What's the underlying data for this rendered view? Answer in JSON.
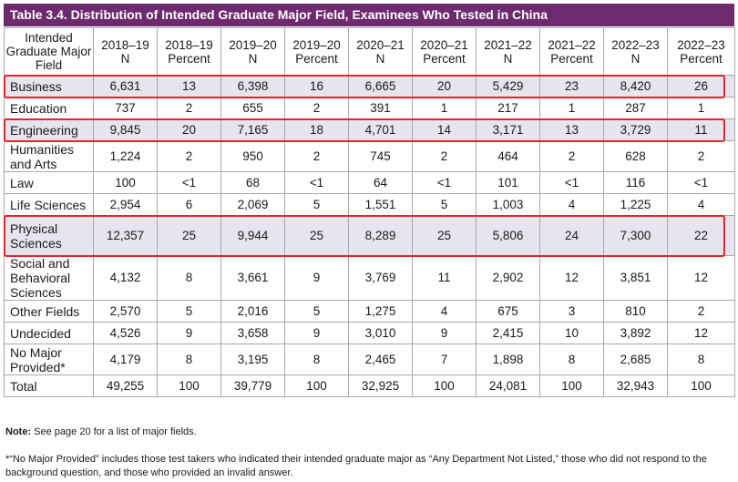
{
  "title": "Table 3.4. Distribution of Intended Graduate Major Field, Examinees Who Tested in China",
  "header": {
    "field": "Intended Graduate Major Field",
    "columns": [
      {
        "year": "2018–19",
        "kind": "N"
      },
      {
        "year": "2018–19",
        "kind": "Percent"
      },
      {
        "year": "2019–20",
        "kind": "N"
      },
      {
        "year": "2019–20",
        "kind": "Percent"
      },
      {
        "year": "2020–21",
        "kind": "N"
      },
      {
        "year": "2020–21",
        "kind": "Percent"
      },
      {
        "year": "2021–22",
        "kind": "N"
      },
      {
        "year": "2021–22",
        "kind": "Percent"
      },
      {
        "year": "2022–23",
        "kind": "N"
      },
      {
        "year": "2022–23",
        "kind": "Percent"
      }
    ]
  },
  "rows": [
    {
      "field": "Business",
      "values": [
        "6,631",
        "13",
        "6,398",
        "16",
        "6,665",
        "20",
        "5,429",
        "23",
        "8,420",
        "26"
      ],
      "shaded": true,
      "highlighted": true
    },
    {
      "field": "Education",
      "values": [
        "737",
        "2",
        "655",
        "2",
        "391",
        "1",
        "217",
        "1",
        "287",
        "1"
      ],
      "shaded": false,
      "highlighted": false
    },
    {
      "field": "Engineering",
      "values": [
        "9,845",
        "20",
        "7,165",
        "18",
        "4,701",
        "14",
        "3,171",
        "13",
        "3,729",
        "11"
      ],
      "shaded": true,
      "highlighted": true
    },
    {
      "field": "Humanities and Arts",
      "values": [
        "1,224",
        "2",
        "950",
        "2",
        "745",
        "2",
        "464",
        "2",
        "628",
        "2"
      ],
      "shaded": false,
      "highlighted": false
    },
    {
      "field": "Law",
      "values": [
        "100",
        "<1",
        "68",
        "<1",
        "64",
        "<1",
        "101",
        "<1",
        "116",
        "<1"
      ],
      "shaded": false,
      "highlighted": false
    },
    {
      "field": "Life Sciences",
      "values": [
        "2,954",
        "6",
        "2,069",
        "5",
        "1,551",
        "5",
        "1,003",
        "4",
        "1,225",
        "4"
      ],
      "shaded": false,
      "highlighted": false
    },
    {
      "field": "Physical Sciences",
      "values": [
        "12,357",
        "25",
        "9,944",
        "25",
        "8,289",
        "25",
        "5,806",
        "24",
        "7,300",
        "22"
      ],
      "shaded": true,
      "highlighted": true
    },
    {
      "field": "Social and Behavioral Sciences",
      "values": [
        "4,132",
        "8",
        "3,661",
        "9",
        "3,769",
        "11",
        "2,902",
        "12",
        "3,851",
        "12"
      ],
      "shaded": false,
      "highlighted": false
    },
    {
      "field": "Other Fields",
      "values": [
        "2,570",
        "5",
        "2,016",
        "5",
        "1,275",
        "4",
        "675",
        "3",
        "810",
        "2"
      ],
      "shaded": false,
      "highlighted": false
    },
    {
      "field": "Undecided",
      "values": [
        "4,526",
        "9",
        "3,658",
        "9",
        "3,010",
        "9",
        "2,415",
        "10",
        "3,892",
        "12"
      ],
      "shaded": false,
      "highlighted": false
    },
    {
      "field": "No Major Provided*",
      "values": [
        "4,179",
        "8",
        "3,195",
        "8",
        "2,465",
        "7",
        "1,898",
        "8",
        "2,685",
        "8"
      ],
      "shaded": false,
      "highlighted": false
    },
    {
      "field": "Total",
      "values": [
        "49,255",
        "100",
        "39,779",
        "100",
        "32,925",
        "100",
        "24,081",
        "100",
        "32,943",
        "100"
      ],
      "shaded": false,
      "highlighted": false
    }
  ],
  "notes": {
    "note_label": "Note:",
    "note_text": " See page 20 for a list of major fields.",
    "footnote": "*“No Major Provided” includes those test takers who indicated their intended graduate major as “Any Department Not Listed,” those who did not respond to the background question, and those who provided an invalid answer."
  },
  "colors": {
    "title_bg": "#6e2a6e",
    "title_text": "#ffffff",
    "shaded_row": "#e5e5ee",
    "highlight_border": "#e8212b",
    "grid_line": "#a9a9a9"
  }
}
